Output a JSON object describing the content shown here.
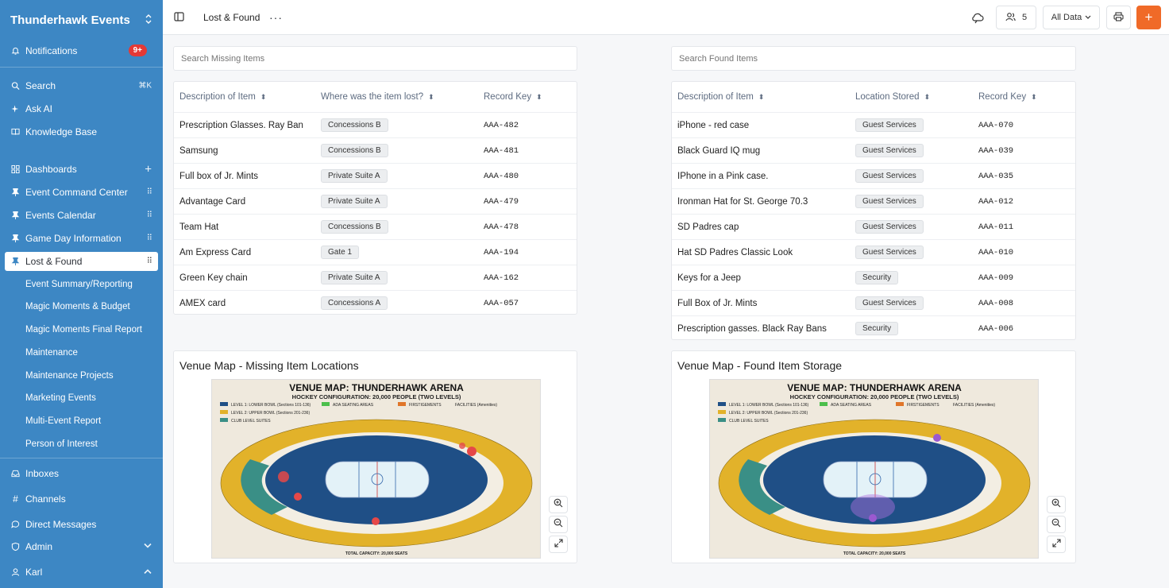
{
  "app": {
    "name": "Thunderhawk Events"
  },
  "sidebar": {
    "notifications": {
      "label": "Notifications",
      "badge": "9+"
    },
    "search": {
      "label": "Search",
      "shortcut": "⌘K"
    },
    "ask_ai": {
      "label": "Ask AI"
    },
    "knowledge_base": {
      "label": "Knowledge Base"
    },
    "dashboards": {
      "label": "Dashboards"
    },
    "pinned": [
      {
        "label": "Event Command Center"
      },
      {
        "label": "Events Calendar"
      },
      {
        "label": "Game Day Information"
      },
      {
        "label": "Lost & Found"
      }
    ],
    "sub_items": [
      {
        "label": "Event Summary/Reporting"
      },
      {
        "label": "Magic Moments & Budget"
      },
      {
        "label": "Magic Moments Final Report"
      },
      {
        "label": "Maintenance"
      },
      {
        "label": "Maintenance Projects"
      },
      {
        "label": "Marketing Events"
      },
      {
        "label": "Multi-Event Report"
      },
      {
        "label": "Person of Interest"
      }
    ],
    "bottom": [
      {
        "label": "Inboxes"
      },
      {
        "label": "Channels"
      },
      {
        "label": "Direct Messages"
      },
      {
        "label": "Admin"
      },
      {
        "label": "Karl"
      }
    ]
  },
  "topbar": {
    "page_title": "Lost & Found",
    "members_count": "5",
    "data_filter": "All Data"
  },
  "missing": {
    "search_placeholder": "Search Missing Items",
    "headers": [
      "Description of Item",
      "Where was the item lost?",
      "Record Key"
    ],
    "rows": [
      {
        "desc": "Prescription Glasses. Ray Ban",
        "loc": "Concessions B",
        "key": "AAA-482"
      },
      {
        "desc": "Samsung",
        "loc": "Concessions B",
        "key": "AAA-481"
      },
      {
        "desc": "Full box of Jr. Mints",
        "loc": "Private Suite A",
        "key": "AAA-480"
      },
      {
        "desc": "Advantage Card",
        "loc": "Private Suite A",
        "key": "AAA-479"
      },
      {
        "desc": "Team Hat",
        "loc": "Concessions B",
        "key": "AAA-478"
      },
      {
        "desc": "Am Express Card",
        "loc": "Gate 1",
        "key": "AAA-194"
      },
      {
        "desc": "Green Key chain",
        "loc": "Private Suite A",
        "key": "AAA-162"
      },
      {
        "desc": "AMEX card",
        "loc": "Concessions A",
        "key": "AAA-057"
      }
    ],
    "map_title": "Venue Map - Missing Item Locations"
  },
  "found": {
    "search_placeholder": "Search Found Items",
    "headers": [
      "Description of Item",
      "Location Stored",
      "Record Key"
    ],
    "rows": [
      {
        "desc": "iPhone - red case",
        "loc": "Guest Services",
        "key": "AAA-070"
      },
      {
        "desc": "Black Guard IQ mug",
        "loc": "Guest Services",
        "key": "AAA-039"
      },
      {
        "desc": "IPhone in a Pink case.",
        "loc": "Guest Services",
        "key": "AAA-035"
      },
      {
        "desc": "Ironman Hat for St. George 70.3",
        "loc": "Guest Services",
        "key": "AAA-012"
      },
      {
        "desc": "SD Padres cap",
        "loc": "Guest Services",
        "key": "AAA-011"
      },
      {
        "desc": "Hat SD Padres Classic Look",
        "loc": "Guest Services",
        "key": "AAA-010"
      },
      {
        "desc": "Keys for a Jeep",
        "loc": "Security",
        "key": "AAA-009"
      },
      {
        "desc": "Full Box of Jr. Mints",
        "loc": "Guest Services",
        "key": "AAA-008"
      },
      {
        "desc": "Prescription gasses. Black Ray Bans",
        "loc": "Security",
        "key": "AAA-006"
      }
    ],
    "map_title": "Venue Map - Found Item Storage"
  },
  "venue_map": {
    "title": "VENUE MAP: THUNDERHAWK ARENA",
    "subtitle": "HOCKEY CONFIGURATION: 20,000 PEOPLE (TWO LEVELS)",
    "legend": [
      "LEVEL 1: LOWER BOWL (Sections 101-136)",
      "LEVEL 2: UPPER BOWL (Sections 201-236)",
      "CLUB LEVEL SUITES",
      "ADA SEATING AREAS",
      "FIRSTIGEMENTS",
      "FACILITIES (Amenities)"
    ],
    "footer": "TOTAL CAPACITY: 20,000 SEATS"
  },
  "colors": {
    "sidebar": "#3d87c4",
    "accent": "#f06a28",
    "badge": "#e53935",
    "lower_bowl": "#1f4f86",
    "upper_bowl": "#e2b22a",
    "club": "#3a8f86"
  }
}
